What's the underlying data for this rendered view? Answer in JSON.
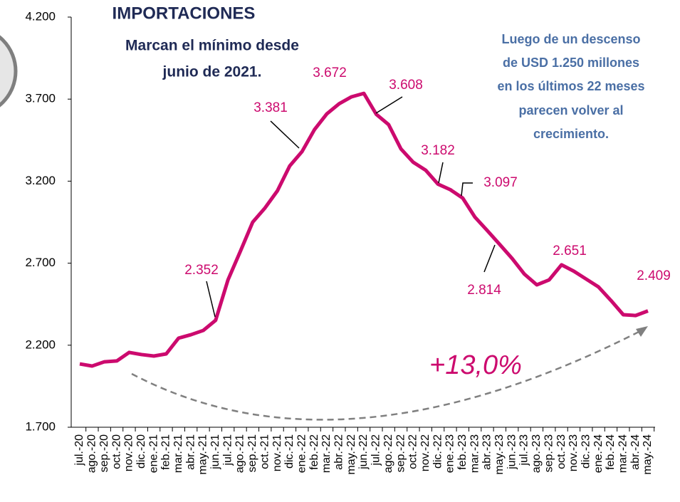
{
  "chart_data": {
    "type": "line",
    "title": "IMPORTACIONES",
    "subtitle": [
      "Marcan el mínimo desde",
      "junio de 2021."
    ],
    "annotation": [
      "Luego de un descenso",
      "de USD 1.250 millones",
      "en los últimos 22 meses",
      "parecen volver al",
      "crecimiento."
    ],
    "change_label": "+13,0%",
    "categories": [
      "jul.-20",
      "ago.-20",
      "sep.-20",
      "oct.-20",
      "nov.-20",
      "dic.-20",
      "ene.-21",
      "feb.-21",
      "mar.-21",
      "abr.-21",
      "may.-21",
      "jun.-21",
      "jul.-21",
      "ago.-21",
      "sep.-21",
      "oct.-21",
      "nov.-21",
      "dic.-21",
      "ene.-22",
      "feb.-22",
      "mar.-22",
      "abr.-22",
      "may.-22",
      "jun.-22",
      "jul.-22",
      "ago.-22",
      "sep.-22",
      "oct.-22",
      "nov.-22",
      "dic.-22",
      "ene.-23",
      "feb.-23",
      "mar.-23",
      "abr.-23",
      "may.-23",
      "jun.-23",
      "jul.-23",
      "ago.-23",
      "sep.-23",
      "oct.-23",
      "nov.-23",
      "dic.-23",
      "ene.-24",
      "feb.-24",
      "mar.-24",
      "abr.-24",
      "may.-24"
    ],
    "values": [
      2086,
      2073,
      2099,
      2104,
      2156,
      2143,
      2134,
      2147,
      2243,
      2264,
      2290,
      2352,
      2598,
      2772,
      2950,
      3037,
      3141,
      3293,
      3381,
      3514,
      3610,
      3672,
      3714,
      3735,
      3608,
      3545,
      3397,
      3315,
      3267,
      3182,
      3148,
      3097,
      2980,
      2898,
      2814,
      2729,
      2633,
      2568,
      2598,
      2690,
      2651,
      2603,
      2555,
      2473,
      2386,
      2381,
      2409
    ],
    "value_labels": [
      null,
      null,
      null,
      null,
      null,
      null,
      null,
      null,
      null,
      null,
      null,
      "2.352",
      null,
      null,
      null,
      null,
      null,
      null,
      "3.381",
      null,
      null,
      "3.672",
      null,
      null,
      "3.608",
      null,
      null,
      null,
      null,
      "3.182",
      null,
      "3.097",
      null,
      null,
      "2.814",
      null,
      null,
      null,
      null,
      null,
      "2.651",
      null,
      null,
      null,
      null,
      null,
      "2.409"
    ],
    "color": "#cc0a6e",
    "ylim": [
      1700,
      4200
    ],
    "yticks": [
      {
        "value": 1700,
        "label": "1.700"
      },
      {
        "value": 2200,
        "label": "2.200"
      },
      {
        "value": 2700,
        "label": "2.700"
      },
      {
        "value": 3200,
        "label": "3.200"
      },
      {
        "value": 3700,
        "label": "3.700"
      },
      {
        "value": 4200,
        "label": "4.200"
      }
    ]
  }
}
